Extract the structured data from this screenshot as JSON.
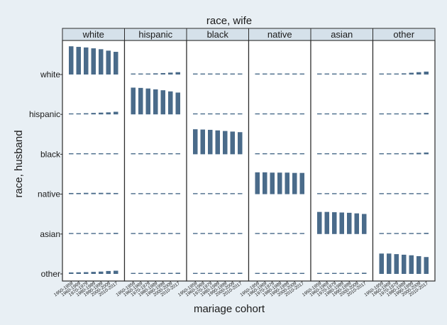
{
  "chart_data": {
    "type": "bar",
    "title": "race, wife",
    "xlabel": "mariage cohort",
    "ylabel": "race, husband",
    "columns": [
      "white",
      "hispanic",
      "black",
      "native",
      "asian",
      "other"
    ],
    "rows": [
      "white",
      "hispanic",
      "black",
      "native",
      "asian",
      "other"
    ],
    "cohorts": [
      "1950-1959",
      "1960-1969",
      "1970-1979",
      "1980-1989",
      "1990-1999",
      "2000-2009",
      "2010-2017"
    ],
    "row_value_range": [
      0,
      1
    ],
    "bar_color": "#4a6b8a",
    "grid": false,
    "cells": [
      {
        "row": "white",
        "col": "white",
        "values": [
          0.97,
          0.95,
          0.93,
          0.9,
          0.87,
          0.82,
          0.78
        ]
      },
      {
        "row": "white",
        "col": "hispanic",
        "values": [
          0.02,
          0.025,
          0.03,
          0.04,
          0.05,
          0.065,
          0.08
        ]
      },
      {
        "row": "white",
        "col": "black",
        "values": [
          0.005,
          0.007,
          0.01,
          0.012,
          0.015,
          0.02,
          0.025
        ]
      },
      {
        "row": "white",
        "col": "native",
        "values": [
          0.01,
          0.012,
          0.015,
          0.02,
          0.02,
          0.025,
          0.03
        ]
      },
      {
        "row": "white",
        "col": "asian",
        "values": [
          0.005,
          0.007,
          0.01,
          0.015,
          0.02,
          0.028,
          0.035
        ]
      },
      {
        "row": "white",
        "col": "other",
        "values": [
          0.01,
          0.015,
          0.02,
          0.04,
          0.06,
          0.08,
          0.1
        ]
      },
      {
        "row": "hispanic",
        "col": "white",
        "values": [
          0.03,
          0.035,
          0.04,
          0.05,
          0.06,
          0.07,
          0.09
        ]
      },
      {
        "row": "hispanic",
        "col": "hispanic",
        "values": [
          0.92,
          0.91,
          0.89,
          0.86,
          0.83,
          0.79,
          0.75
        ]
      },
      {
        "row": "hispanic",
        "col": "black",
        "values": [
          0.005,
          0.007,
          0.01,
          0.012,
          0.015,
          0.018,
          0.02
        ]
      },
      {
        "row": "hispanic",
        "col": "native",
        "values": [
          0.003,
          0.004,
          0.005,
          0.006,
          0.007,
          0.008,
          0.01
        ]
      },
      {
        "row": "hispanic",
        "col": "asian",
        "values": [
          0.003,
          0.004,
          0.005,
          0.007,
          0.01,
          0.012,
          0.015
        ]
      },
      {
        "row": "hispanic",
        "col": "other",
        "values": [
          0.01,
          0.012,
          0.015,
          0.02,
          0.03,
          0.04,
          0.05
        ]
      },
      {
        "row": "black",
        "col": "white",
        "values": [
          0.005,
          0.007,
          0.01,
          0.015,
          0.02,
          0.025,
          0.03
        ]
      },
      {
        "row": "black",
        "col": "hispanic",
        "values": [
          0.003,
          0.004,
          0.006,
          0.008,
          0.01,
          0.012,
          0.015
        ]
      },
      {
        "row": "black",
        "col": "black",
        "values": [
          0.86,
          0.85,
          0.84,
          0.82,
          0.8,
          0.78,
          0.76
        ]
      },
      {
        "row": "black",
        "col": "native",
        "values": [
          0.002,
          0.003,
          0.004,
          0.005,
          0.006,
          0.007,
          0.008
        ]
      },
      {
        "row": "black",
        "col": "asian",
        "values": [
          0.002,
          0.003,
          0.004,
          0.006,
          0.008,
          0.01,
          0.012
        ]
      },
      {
        "row": "black",
        "col": "other",
        "values": [
          0.01,
          0.015,
          0.02,
          0.03,
          0.04,
          0.05,
          0.06
        ]
      },
      {
        "row": "native",
        "col": "white",
        "values": [
          0.04,
          0.04,
          0.045,
          0.045,
          0.045,
          0.045,
          0.04
        ]
      },
      {
        "row": "native",
        "col": "hispanic",
        "values": [
          0.003,
          0.004,
          0.005,
          0.006,
          0.007,
          0.008,
          0.01
        ]
      },
      {
        "row": "native",
        "col": "black",
        "values": [
          0.003,
          0.004,
          0.005,
          0.006,
          0.007,
          0.008,
          0.01
        ]
      },
      {
        "row": "native",
        "col": "native",
        "values": [
          0.75,
          0.75,
          0.74,
          0.74,
          0.74,
          0.73,
          0.73
        ]
      },
      {
        "row": "native",
        "col": "asian",
        "values": [
          0.002,
          0.003,
          0.004,
          0.005,
          0.006,
          0.007,
          0.008
        ]
      },
      {
        "row": "native",
        "col": "other",
        "values": [
          0.01,
          0.012,
          0.015,
          0.018,
          0.02,
          0.022,
          0.025
        ]
      },
      {
        "row": "asian",
        "col": "white",
        "values": [
          0.005,
          0.007,
          0.01,
          0.015,
          0.02,
          0.03,
          0.04
        ]
      },
      {
        "row": "asian",
        "col": "hispanic",
        "values": [
          0.003,
          0.004,
          0.005,
          0.006,
          0.008,
          0.01,
          0.012
        ]
      },
      {
        "row": "asian",
        "col": "black",
        "values": [
          0.002,
          0.003,
          0.004,
          0.005,
          0.006,
          0.007,
          0.008
        ]
      },
      {
        "row": "asian",
        "col": "native",
        "values": [
          0.002,
          0.003,
          0.003,
          0.004,
          0.004,
          0.005,
          0.005
        ]
      },
      {
        "row": "asian",
        "col": "asian",
        "values": [
          0.76,
          0.76,
          0.75,
          0.74,
          0.73,
          0.71,
          0.69
        ]
      },
      {
        "row": "asian",
        "col": "other",
        "values": [
          0.01,
          0.015,
          0.02,
          0.025,
          0.03,
          0.035,
          0.04
        ]
      },
      {
        "row": "other",
        "col": "white",
        "values": [
          0.05,
          0.055,
          0.06,
          0.07,
          0.08,
          0.1,
          0.11
        ]
      },
      {
        "row": "other",
        "col": "hispanic",
        "values": [
          0.01,
          0.015,
          0.02,
          0.025,
          0.03,
          0.035,
          0.04
        ]
      },
      {
        "row": "other",
        "col": "black",
        "values": [
          0.01,
          0.015,
          0.02,
          0.025,
          0.03,
          0.035,
          0.04
        ]
      },
      {
        "row": "other",
        "col": "native",
        "values": [
          0.005,
          0.007,
          0.01,
          0.012,
          0.015,
          0.018,
          0.02
        ]
      },
      {
        "row": "other",
        "col": "asian",
        "values": [
          0.01,
          0.015,
          0.02,
          0.025,
          0.03,
          0.035,
          0.04
        ]
      },
      {
        "row": "other",
        "col": "other",
        "values": [
          0.7,
          0.7,
          0.68,
          0.66,
          0.64,
          0.61,
          0.58
        ]
      }
    ]
  }
}
